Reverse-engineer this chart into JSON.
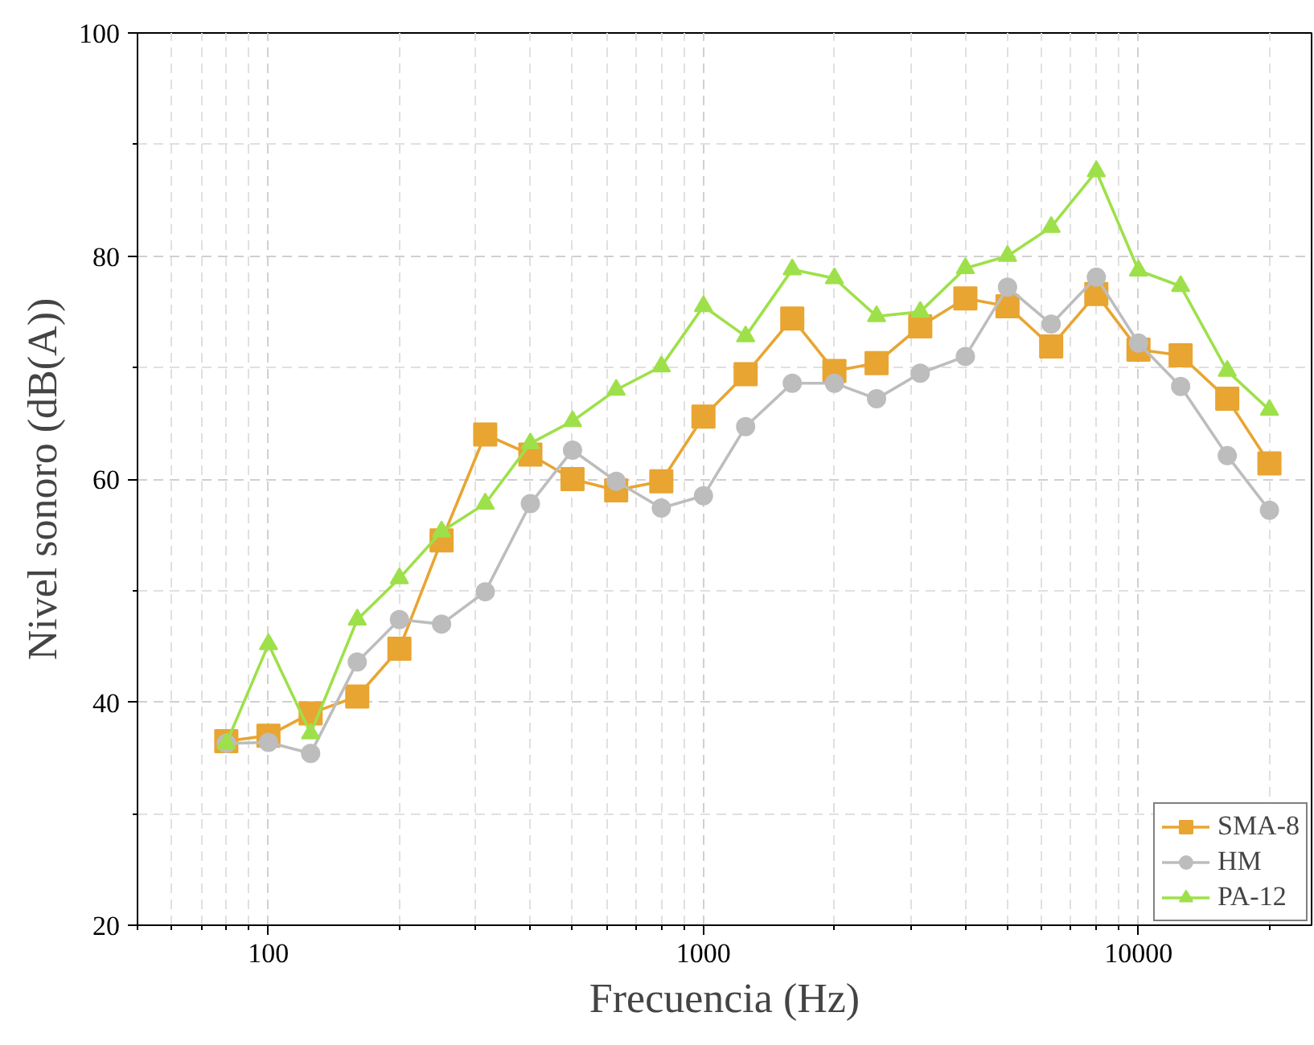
{
  "chart_data": {
    "type": "line",
    "xlabel": "Frecuencia (Hz)",
    "ylabel": "Nivel sonoro (dB(A))",
    "x": [
      80,
      100,
      125,
      160,
      200,
      250,
      315,
      400,
      500,
      630,
      800,
      1000,
      1250,
      1600,
      2000,
      2500,
      3150,
      4000,
      5000,
      6300,
      8000,
      10000,
      12500,
      16000,
      20000
    ],
    "series": [
      {
        "name": "SMA-8",
        "color": "#e8a532",
        "marker": "square",
        "values": [
          36.5,
          37,
          39,
          40.5,
          44.8,
          54.5,
          64,
          62.2,
          60,
          59,
          59.8,
          65.6,
          69.4,
          74.4,
          69.7,
          70.4,
          73.7,
          76.2,
          75.5,
          71.9,
          76.6,
          71.6,
          71.1,
          67.2,
          61.4
        ]
      },
      {
        "name": "HM",
        "color": "#bdbdbd",
        "marker": "circle",
        "values": [
          36.3,
          36.4,
          35.4,
          43.6,
          47.4,
          47,
          49.9,
          57.8,
          62.6,
          59.8,
          57.4,
          58.5,
          64.7,
          68.6,
          68.6,
          67.2,
          69.5,
          71,
          77.2,
          73.9,
          78.1,
          72.2,
          68.3,
          62.1,
          57.2
        ]
      },
      {
        "name": "PA-12",
        "color": "#9ee04a",
        "marker": "triangle",
        "values": [
          36.3,
          45.2,
          37.2,
          47.4,
          51.1,
          55.3,
          57.8,
          63.2,
          65.2,
          68,
          70.1,
          75.5,
          72.8,
          78.8,
          78,
          74.6,
          75,
          78.9,
          80,
          82.6,
          87.6,
          78.7,
          77.3,
          69.7,
          66.2
        ]
      }
    ],
    "log": "x",
    "xlim": [
      50,
      25000
    ],
    "xticks": [
      100,
      1000,
      10000
    ],
    "ylim": [
      20,
      100
    ],
    "yticks": [
      20,
      40,
      60,
      80,
      100
    ],
    "grid": true,
    "legend": "bottom right",
    "line_style": "solid"
  }
}
